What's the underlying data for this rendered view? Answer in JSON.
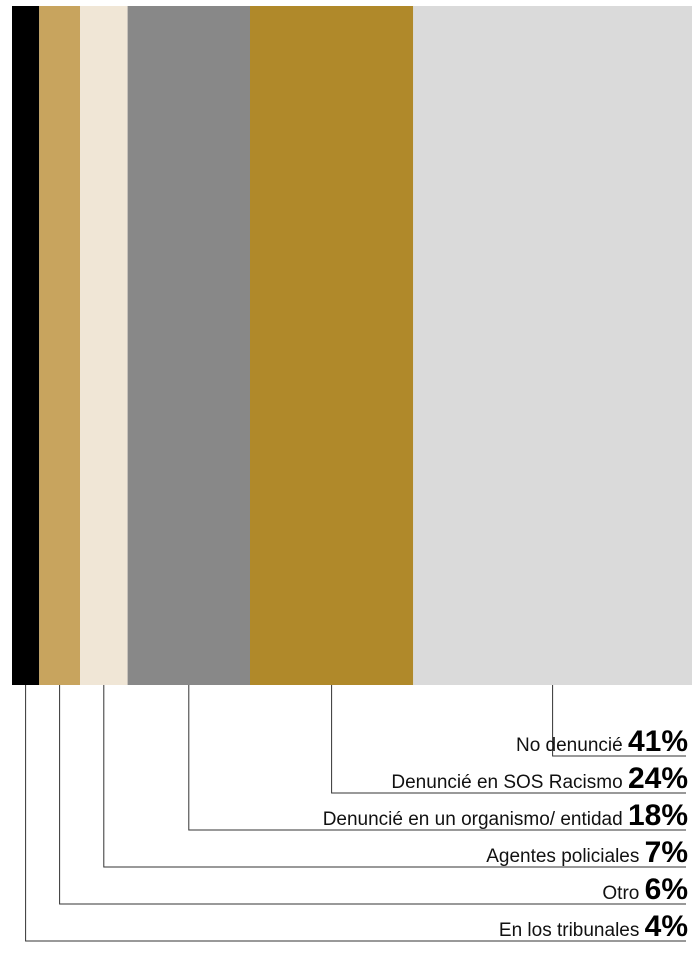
{
  "chart_data": {
    "type": "bar",
    "orientation": "stacked-horizontal-100-percent",
    "categories": [
      "En los tribunales",
      "Otro",
      "Agentes policiales",
      "Denuncié en un organismo/ entidad",
      "Denuncié en SOS Racismo",
      "No denuncié"
    ],
    "values": [
      4,
      6,
      7,
      18,
      24,
      41
    ],
    "value_labels": [
      "4%",
      "6%",
      "7%",
      "18%",
      "24%",
      "41%"
    ],
    "colors": [
      "#000000",
      "#c8a45e",
      "#f0e6d6",
      "#888888",
      "#b0892a",
      "#dadada"
    ],
    "unit": "%",
    "title": "",
    "xlabel": "",
    "ylabel": "",
    "xlim": [
      0,
      100
    ],
    "grid": false,
    "legend": "leader-line labels below chart, right-aligned"
  }
}
